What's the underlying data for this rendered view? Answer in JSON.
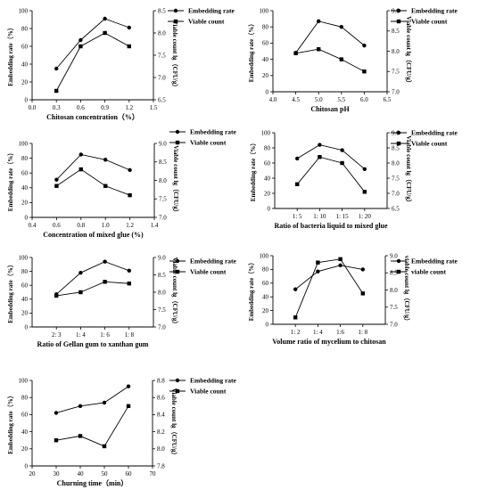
{
  "chart_data": [
    {
      "type": "line",
      "x_categorical": false,
      "x": [
        0.3,
        0.6,
        0.9,
        1.2
      ],
      "xlim": [
        0.0,
        1.5
      ],
      "xticks": [
        "0.0",
        "0.3",
        "0.6",
        "0.9",
        "1.2",
        "1.5"
      ],
      "xlabel": "Chitosan concentration（%）",
      "ylabel_left": "Embedding rate（%）",
      "ylim_left": [
        0,
        100
      ],
      "yticks_left": [
        "0",
        "20",
        "40",
        "60",
        "80",
        "100"
      ],
      "ylabel_right": "Viable count lg（CFU/g）",
      "ylim_right": [
        6.5,
        8.5
      ],
      "yticks_right": [
        "6.5",
        "7.0",
        "7.5",
        "8.0",
        "8.5"
      ],
      "series": [
        {
          "name": "Embedding rate",
          "axis": "left",
          "marker": "circle",
          "values": [
            35,
            67,
            91,
            81
          ]
        },
        {
          "name": "Viable count",
          "axis": "right",
          "marker": "square",
          "values": [
            6.7,
            7.7,
            8.0,
            7.7
          ]
        }
      ],
      "legend_position": "right"
    },
    {
      "type": "line",
      "x_categorical": false,
      "x": [
        4.5,
        5.0,
        5.5,
        6.0
      ],
      "xlim": [
        4.0,
        6.5
      ],
      "xticks": [
        "4.0",
        "4.5",
        "5.0",
        "5.5",
        "6.0",
        "6.5"
      ],
      "xlabel": "Chitosan pH",
      "ylabel_left": "Embedding rate（%）",
      "ylim_left": [
        0,
        100
      ],
      "yticks_left": [
        "0",
        "20",
        "40",
        "60",
        "80",
        "100"
      ],
      "ylabel_right": "Viable count lg（CFU/g）",
      "ylim_right": [
        7.0,
        9.0
      ],
      "yticks_right": [
        "7.0",
        "7.5",
        "8.0",
        "8.5",
        "9.0"
      ],
      "series": [
        {
          "name": "Embedding rate",
          "axis": "left",
          "marker": "circle",
          "values": [
            48,
            87,
            80,
            57
          ]
        },
        {
          "name": "Viable count",
          "axis": "right",
          "marker": "square",
          "values": [
            7.95,
            8.05,
            7.8,
            7.5
          ]
        }
      ],
      "legend_position": "right"
    },
    {
      "type": "line",
      "x_categorical": false,
      "x": [
        0.6,
        0.8,
        1.0,
        1.2
      ],
      "xlim": [
        0.4,
        1.4
      ],
      "xticks": [
        "0.4",
        "0.6",
        "0.8",
        "1.0",
        "1.2",
        "1.4"
      ],
      "xlabel": "Concentration of mixed glue (%)",
      "ylabel_left": "Embedding rate（%）",
      "ylim_left": [
        0,
        100
      ],
      "yticks_left": [
        "0",
        "20",
        "40",
        "60",
        "80",
        "100"
      ],
      "ylabel_right": "Viable count lg（CFU/g）",
      "ylim_right": [
        7.0,
        9.0
      ],
      "yticks_right": [
        "7.0",
        "7.5",
        "8.0",
        "8.5",
        "9.0"
      ],
      "series": [
        {
          "name": "Embedding rate",
          "axis": "left",
          "marker": "circle",
          "values": [
            51,
            85,
            78,
            64
          ]
        },
        {
          "name": "Viable count",
          "axis": "right",
          "marker": "square",
          "values": [
            7.85,
            8.3,
            7.85,
            7.6
          ]
        }
      ],
      "legend_position": "right"
    },
    {
      "type": "line",
      "x_categorical": true,
      "categories": [
        "1: 5",
        "1: 10",
        "1: 15",
        "1: 20"
      ],
      "xlabel": "Ratio of bacteria liquid to mixed glue",
      "ylabel_left": "Embedding rate（%）",
      "ylim_left": [
        0,
        100
      ],
      "yticks_left": [
        "0",
        "20",
        "40",
        "60",
        "80",
        "100"
      ],
      "ylabel_right": "Viable count lg（CFU/g）",
      "ylim_right": [
        6.5,
        9.0
      ],
      "yticks_right": [
        "6.5",
        "7.0",
        "7.5",
        "8.0",
        "8.5",
        "9.0"
      ],
      "series": [
        {
          "name": "Embedding rate",
          "axis": "left",
          "marker": "circle",
          "values": [
            66,
            84,
            77,
            52
          ]
        },
        {
          "name": "Viable count",
          "axis": "right",
          "marker": "square",
          "values": [
            7.3,
            8.2,
            8.0,
            7.05
          ]
        }
      ],
      "legend_position": "right"
    },
    {
      "type": "line",
      "x_categorical": true,
      "categories": [
        "2: 3",
        "1: 4",
        "1: 6",
        "1: 8"
      ],
      "xlabel": "Ratio of Gellan gum to xanthan gum",
      "ylabel_left": "Embedding rate（%）",
      "ylim_left": [
        0,
        100
      ],
      "yticks_left": [
        "0",
        "20",
        "40",
        "60",
        "80",
        "100"
      ],
      "ylabel_right": "Viable count lg（CFU/g）",
      "ylim_right": [
        7.0,
        9.0
      ],
      "yticks_right": [
        "7.0",
        "7.5",
        "8.0",
        "8.5",
        "9.0"
      ],
      "series": [
        {
          "name": "Embedding rate",
          "axis": "left",
          "marker": "circle",
          "values": [
            47,
            78,
            94,
            81
          ]
        },
        {
          "name": "Viable count",
          "axis": "right",
          "marker": "square",
          "values": [
            7.9,
            8.0,
            8.3,
            8.25
          ]
        }
      ],
      "legend_position": "right"
    },
    {
      "type": "line",
      "x_categorical": true,
      "categories": [
        "1: 2",
        "1: 4",
        "1:6",
        "1: 8"
      ],
      "xlabel": "Volume ratio of mycelium to chitosan",
      "ylabel_left": "Embedding rate（%）",
      "ylim_left": [
        0,
        100
      ],
      "yticks_left": [
        "0",
        "20",
        "40",
        "60",
        "80",
        "100"
      ],
      "ylabel_right": "viable count lg（CFU/g）",
      "ylim_right": [
        7.0,
        9.0
      ],
      "yticks_right": [
        "7.0",
        "7.5",
        "8.0",
        "8.5",
        "9.0"
      ],
      "series": [
        {
          "name": "Embedding rate",
          "axis": "left",
          "marker": "circle",
          "values": [
            51,
            77,
            86,
            80
          ]
        },
        {
          "name": "viable count",
          "axis": "right",
          "marker": "square",
          "values": [
            7.2,
            8.8,
            8.9,
            7.9
          ]
        }
      ],
      "legend_position": "right"
    },
    {
      "type": "line",
      "x_categorical": false,
      "x": [
        30,
        40,
        50,
        60
      ],
      "xlim": [
        20,
        70
      ],
      "xticks": [
        "20",
        "30",
        "40",
        "50",
        "60",
        "70"
      ],
      "xlabel": "Churning time（min）",
      "ylabel_left": "Embedding rate（%）",
      "ylim_left": [
        0,
        100
      ],
      "yticks_left": [
        "0",
        "20",
        "40",
        "60",
        "80",
        "100"
      ],
      "ylabel_right": "Viable count lg（CFU/g）",
      "ylim_right": [
        7.8,
        8.8
      ],
      "yticks_right": [
        "7.8",
        "8.0",
        "8.2",
        "8.4",
        "8.6",
        "8.8"
      ],
      "series": [
        {
          "name": "Embedding rate",
          "axis": "left",
          "marker": "circle",
          "values": [
            62,
            70,
            74,
            93
          ]
        },
        {
          "name": "Viable count",
          "axis": "right",
          "marker": "square",
          "values": [
            8.1,
            8.15,
            8.03,
            8.5
          ]
        }
      ],
      "legend_position": "right"
    }
  ]
}
